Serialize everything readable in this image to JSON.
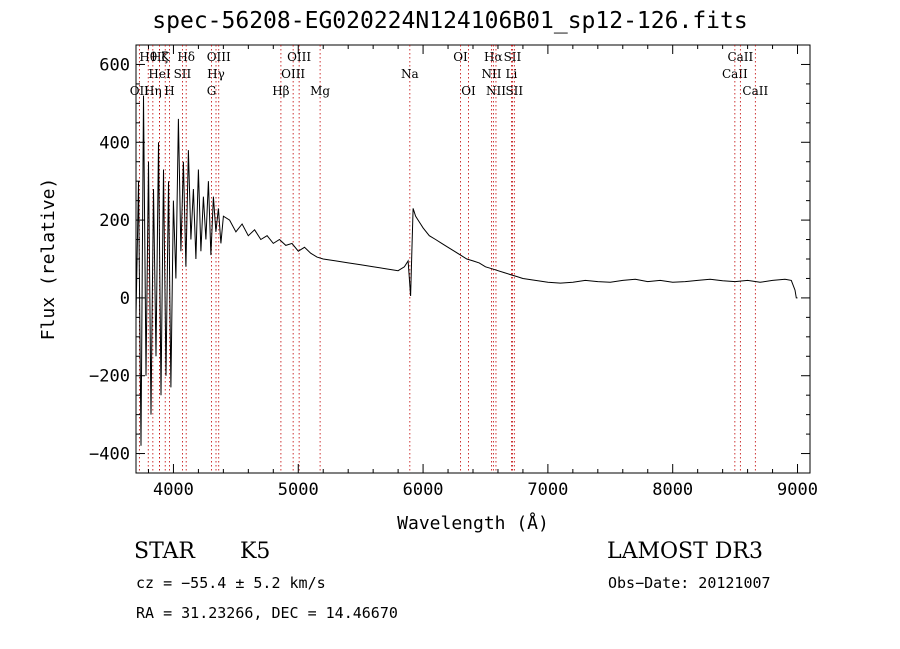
{
  "chart_data": {
    "type": "line",
    "title": "spec-56208-EG020224N124106B01_sp12-126.fits",
    "xlabel": "Wavelength (Å)",
    "ylabel": "Flux (relative)",
    "xlim": [
      3700,
      9100
    ],
    "ylim": [
      -450,
      650
    ],
    "xticks": [
      4000,
      5000,
      6000,
      7000,
      8000,
      9000
    ],
    "yticks": [
      -400,
      -200,
      0,
      200,
      400,
      600
    ],
    "series": [
      {
        "name": "flux",
        "x": [
          3700,
          3720,
          3740,
          3760,
          3780,
          3800,
          3820,
          3840,
          3860,
          3880,
          3900,
          3920,
          3940,
          3960,
          3980,
          4000,
          4020,
          4040,
          4060,
          4080,
          4100,
          4120,
          4140,
          4160,
          4180,
          4200,
          4220,
          4240,
          4260,
          4280,
          4300,
          4320,
          4340,
          4360,
          4380,
          4400,
          4450,
          4500,
          4550,
          4600,
          4650,
          4700,
          4750,
          4800,
          4850,
          4900,
          4950,
          5000,
          5050,
          5100,
          5150,
          5200,
          5300,
          5400,
          5500,
          5600,
          5700,
          5800,
          5850,
          5880,
          5900,
          5905,
          5920,
          5940,
          5960,
          5980,
          6000,
          6050,
          6100,
          6150,
          6200,
          6250,
          6300,
          6350,
          6400,
          6450,
          6500,
          6550,
          6600,
          6650,
          6700,
          6750,
          6800,
          6900,
          7000,
          7100,
          7200,
          7300,
          7400,
          7500,
          7600,
          7700,
          7800,
          7900,
          8000,
          8100,
          8200,
          8300,
          8400,
          8500,
          8600,
          8700,
          8800,
          8900,
          8950,
          8980,
          8990,
          9000
        ],
        "y": [
          -50,
          300,
          -380,
          520,
          -200,
          350,
          -300,
          280,
          -150,
          400,
          -250,
          330,
          -200,
          300,
          -230,
          250,
          50,
          460,
          120,
          350,
          80,
          380,
          150,
          280,
          100,
          330,
          120,
          260,
          150,
          300,
          110,
          260,
          170,
          230,
          140,
          210,
          200,
          170,
          190,
          160,
          175,
          150,
          160,
          140,
          150,
          135,
          140,
          120,
          130,
          115,
          105,
          100,
          95,
          90,
          85,
          80,
          75,
          70,
          80,
          95,
          5,
          60,
          230,
          210,
          200,
          190,
          180,
          160,
          150,
          140,
          130,
          120,
          110,
          100,
          95,
          90,
          80,
          75,
          70,
          65,
          60,
          55,
          50,
          45,
          40,
          38,
          40,
          45,
          42,
          40,
          45,
          48,
          42,
          45,
          40,
          42,
          45,
          48,
          44,
          42,
          45,
          40,
          45,
          48,
          45,
          20,
          0,
          0
        ]
      }
    ],
    "lines": [
      {
        "label": "OII",
        "x": 3727,
        "row": 3
      },
      {
        "label": "Hθ",
        "x": 3798,
        "row": 1
      },
      {
        "label": "Hη",
        "x": 3835,
        "row": 3
      },
      {
        "label": "Hζ",
        "x": 3889,
        "row": 1
      },
      {
        "label": "HeI",
        "x": 3889,
        "row": 2
      },
      {
        "label": "K",
        "x": 3934,
        "row": 1
      },
      {
        "label": "H",
        "x": 3968,
        "row": 3
      },
      {
        "label": "Hδ",
        "x": 4102,
        "row": 1
      },
      {
        "label": "SII",
        "x": 4072,
        "row": 2
      },
      {
        "label": "OIII",
        "x": 4363,
        "row": 1
      },
      {
        "label": "Hγ",
        "x": 4341,
        "row": 2
      },
      {
        "label": "G",
        "x": 4305,
        "row": 3
      },
      {
        "label": "Hβ",
        "x": 4861,
        "row": 3
      },
      {
        "label": "OIII",
        "x": 5007,
        "row": 1
      },
      {
        "label": "OIII",
        "x": 4959,
        "row": 2
      },
      {
        "label": "Mg",
        "x": 5175,
        "row": 3
      },
      {
        "label": "Na",
        "x": 5894,
        "row": 2
      },
      {
        "label": "OI",
        "x": 6300,
        "row": 1
      },
      {
        "label": "OI",
        "x": 6364,
        "row": 3
      },
      {
        "label": "Hα",
        "x": 6563,
        "row": 1
      },
      {
        "label": "NII",
        "x": 6548,
        "row": 2
      },
      {
        "label": "NII",
        "x": 6584,
        "row": 3
      },
      {
        "label": "SII",
        "x": 6716,
        "row": 1
      },
      {
        "label": "Li",
        "x": 6708,
        "row": 2
      },
      {
        "label": "SII",
        "x": 6731,
        "row": 3
      },
      {
        "label": "CaII",
        "x": 8498,
        "row": 2
      },
      {
        "label": "CaII",
        "x": 8542,
        "row": 1
      },
      {
        "label": "CaII",
        "x": 8662,
        "row": 3
      }
    ]
  },
  "info": {
    "object_class": "STAR",
    "subclass": "K5",
    "survey": "LAMOST DR3",
    "cz": "cz = −55.4 ± 5.2 km/s",
    "obs_date": "Obs−Date: 20121007",
    "coords": "RA =  31.23266, DEC =  14.46670"
  }
}
